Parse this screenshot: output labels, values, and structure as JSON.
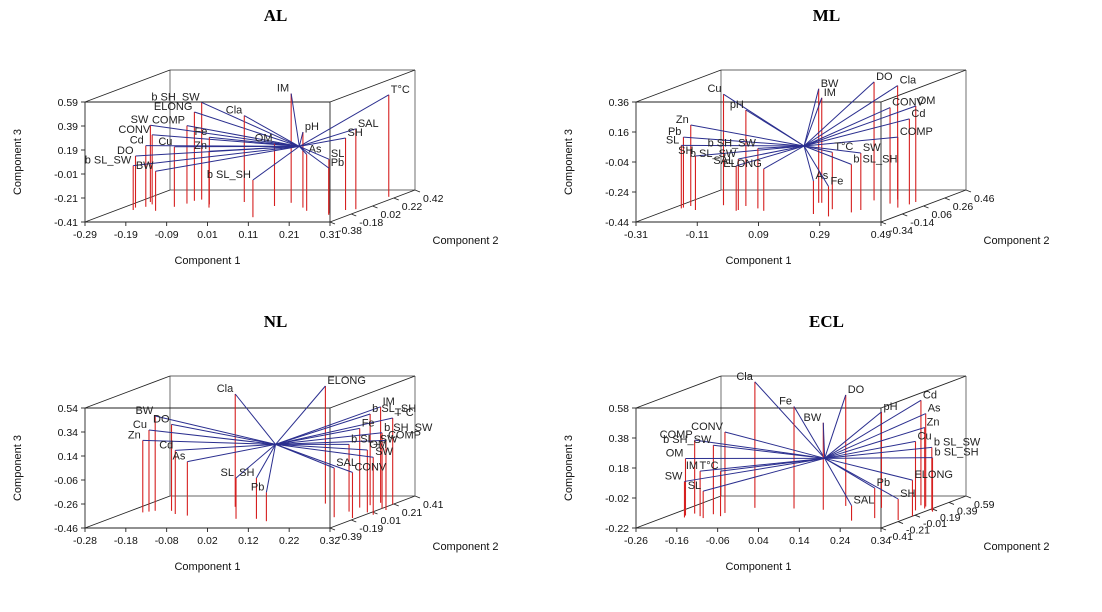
{
  "chart_data": [
    {
      "type": "scatter",
      "title": "AL",
      "xlabel": "Component 1",
      "ylabel": "Component 2",
      "zlabel": "Component 3",
      "xticks": [
        "-0.29",
        "-0.19",
        "-0.09",
        "0.01",
        "0.11",
        "0.21",
        "0.31"
      ],
      "yticks": [
        "-0.38",
        "-0.18",
        "0.02",
        "0.22",
        "0.42"
      ],
      "zticks": [
        "-0.41",
        "-0.21",
        "-0.01",
        "0.19",
        "0.39",
        "0.59"
      ],
      "center": [
        0.11,
        0.1,
        0.06
      ],
      "vectors": [
        {
          "label": "IM",
          "x": 0.09,
          "y": 0.1,
          "z": 0.5
        },
        {
          "label": "T°C",
          "x": 0.29,
          "y": 0.25,
          "z": 0.44
        },
        {
          "label": "b SH_SW",
          "x": -0.15,
          "y": 0.18,
          "z": 0.4
        },
        {
          "label": "ELONG",
          "x": -0.16,
          "y": 0.15,
          "z": 0.33
        },
        {
          "label": "Cla",
          "x": -0.03,
          "y": 0.12,
          "z": 0.31
        },
        {
          "label": "COMP",
          "x": -0.16,
          "y": 0.08,
          "z": 0.24
        },
        {
          "label": "SW",
          "x": -0.26,
          "y": 0.12,
          "z": 0.23
        },
        {
          "label": "CONV",
          "x": -0.24,
          "y": 0.06,
          "z": 0.17
        },
        {
          "label": "Fe",
          "x": -0.1,
          "y": 0.06,
          "z": 0.15
        },
        {
          "label": "pH",
          "x": 0.15,
          "y": -0.02,
          "z": 0.22
        },
        {
          "label": "SAL",
          "x": 0.29,
          "y": -0.06,
          "z": 0.26
        },
        {
          "label": "SH",
          "x": 0.27,
          "y": -0.08,
          "z": 0.19
        },
        {
          "label": "OM",
          "x": 0.07,
          "y": 0.02,
          "z": 0.11
        },
        {
          "label": "Cd",
          "x": -0.24,
          "y": 0.0,
          "z": 0.1
        },
        {
          "label": "Cu",
          "x": -0.17,
          "y": 0.0,
          "z": 0.09
        },
        {
          "label": "Zn",
          "x": -0.08,
          "y": -0.02,
          "z": 0.06
        },
        {
          "label": "As",
          "x": 0.18,
          "y": -0.1,
          "z": 0.06
        },
        {
          "label": "DO",
          "x": -0.26,
          "y": -0.02,
          "z": 0.02
        },
        {
          "label": "SL",
          "x": 0.25,
          "y": -0.16,
          "z": 0.04
        },
        {
          "label": "Pb",
          "x": 0.26,
          "y": -0.2,
          "z": -0.02
        },
        {
          "label": "b SL_SW",
          "x": -0.25,
          "y": -0.08,
          "z": -0.04
        },
        {
          "label": "BW",
          "x": -0.19,
          "y": -0.1,
          "z": -0.08
        },
        {
          "label": "b SL_SH",
          "x": 0.09,
          "y": -0.26,
          "z": -0.1
        }
      ]
    },
    {
      "type": "scatter",
      "title": "ML",
      "xlabel": "Component 1",
      "ylabel": "Component 2",
      "zlabel": "Component 3",
      "xticks": [
        "-0.31",
        "-0.11",
        "0.09",
        "0.29",
        "0.49"
      ],
      "yticks": [
        "-0.34",
        "-0.14",
        "0.06",
        "0.26",
        "0.46"
      ],
      "zticks": [
        "-0.44",
        "-0.24",
        "-0.04",
        "0.16",
        "0.36"
      ],
      "center": [
        0.1,
        0.06,
        -0.04
      ],
      "vectors": [
        {
          "label": "Cu",
          "x": -0.17,
          "y": 0.08,
          "z": 0.3
        },
        {
          "label": "pH",
          "x": -0.09,
          "y": 0.06,
          "z": 0.2
        },
        {
          "label": "BW",
          "x": 0.12,
          "y": 0.14,
          "z": 0.32
        },
        {
          "label": "IM",
          "x": 0.13,
          "y": 0.14,
          "z": 0.26
        },
        {
          "label": "DO",
          "x": 0.28,
          "y": 0.2,
          "z": 0.35
        },
        {
          "label": "Cla",
          "x": 0.35,
          "y": 0.22,
          "z": 0.32
        },
        {
          "label": "CONV",
          "x": 0.36,
          "y": 0.12,
          "z": 0.2
        },
        {
          "label": "OM",
          "x": 0.43,
          "y": 0.16,
          "z": 0.2
        },
        {
          "label": "Cd",
          "x": 0.43,
          "y": 0.1,
          "z": 0.13
        },
        {
          "label": "COMP",
          "x": 0.42,
          "y": 0.02,
          "z": 0.03
        },
        {
          "label": "Zn",
          "x": -0.27,
          "y": 0.06,
          "z": 0.1
        },
        {
          "label": "Pb",
          "x": -0.28,
          "y": 0.02,
          "z": 0.03
        },
        {
          "label": "SL",
          "x": -0.28,
          "y": 0.0,
          "z": -0.02
        },
        {
          "label": "SH",
          "x": -0.22,
          "y": -0.04,
          "z": -0.08
        },
        {
          "label": "b SH_SW",
          "x": -0.03,
          "y": 0.0,
          "z": -0.04
        },
        {
          "label": "b SL_SW",
          "x": -0.08,
          "y": -0.04,
          "z": -0.1
        },
        {
          "label": "SAL",
          "x": -0.08,
          "y": -0.06,
          "z": -0.14
        },
        {
          "label": "ELONG",
          "x": 0.01,
          "y": -0.06,
          "z": -0.16
        },
        {
          "label": "T°C",
          "x": 0.22,
          "y": -0.02,
          "z": -0.06
        },
        {
          "label": "SW",
          "x": 0.32,
          "y": -0.04,
          "z": -0.06
        },
        {
          "label": "b SL_SH",
          "x": 0.31,
          "y": -0.1,
          "z": -0.12
        },
        {
          "label": "As",
          "x": 0.2,
          "y": -0.14,
          "z": -0.22
        },
        {
          "label": "Fe",
          "x": 0.27,
          "y": -0.2,
          "z": -0.24
        }
      ]
    },
    {
      "type": "scatter",
      "title": "NL",
      "xlabel": "Component 1",
      "ylabel": "Component 2",
      "zlabel": "Component 3",
      "xticks": [
        "-0.28",
        "-0.18",
        "-0.08",
        "0.02",
        "0.12",
        "0.22",
        "0.32"
      ],
      "yticks": [
        "-0.39",
        "-0.19",
        "0.01",
        "0.21",
        "0.41"
      ],
      "zticks": [
        "-0.46",
        "-0.26",
        "-0.06",
        "0.14",
        "0.34",
        "0.54"
      ],
      "center": [
        0.08,
        0.02,
        0.1
      ],
      "vectors": [
        {
          "label": "Cla",
          "x": -0.05,
          "y": 0.14,
          "z": 0.48
        },
        {
          "label": "ELONG",
          "x": 0.15,
          "y": 0.22,
          "z": 0.52
        },
        {
          "label": "IM",
          "x": 0.28,
          "y": 0.24,
          "z": 0.34
        },
        {
          "label": "b SL_SH",
          "x": 0.27,
          "y": 0.18,
          "z": 0.3
        },
        {
          "label": "T°C",
          "x": 0.32,
          "y": 0.2,
          "z": 0.26
        },
        {
          "label": "BW",
          "x": -0.22,
          "y": 0.04,
          "z": 0.33
        },
        {
          "label": "DO",
          "x": -0.18,
          "y": 0.04,
          "z": 0.26
        },
        {
          "label": "Cu",
          "x": -0.23,
          "y": 0.02,
          "z": 0.22
        },
        {
          "label": "Fe",
          "x": 0.26,
          "y": 0.12,
          "z": 0.2
        },
        {
          "label": "b SH_SW",
          "x": 0.32,
          "y": 0.1,
          "z": 0.17
        },
        {
          "label": "COMP",
          "x": 0.34,
          "y": 0.06,
          "z": 0.12
        },
        {
          "label": "Zn",
          "x": -0.24,
          "y": 0.0,
          "z": 0.14
        },
        {
          "label": "b SL_SW",
          "x": 0.26,
          "y": 0.02,
          "z": 0.1
        },
        {
          "label": "OM",
          "x": 0.31,
          "y": 0.0,
          "z": 0.06
        },
        {
          "label": "Cd",
          "x": -0.15,
          "y": -0.04,
          "z": 0.07
        },
        {
          "label": "SW",
          "x": 0.34,
          "y": -0.06,
          "z": 0.02
        },
        {
          "label": "As",
          "x": -0.11,
          "y": -0.08,
          "z": -0.01
        },
        {
          "label": "SAL",
          "x": 0.26,
          "y": -0.12,
          "z": -0.05
        },
        {
          "label": "CONV",
          "x": 0.31,
          "y": -0.14,
          "z": -0.08
        },
        {
          "label": "SL",
          "x": 0.03,
          "y": -0.16,
          "z": -0.12
        },
        {
          "label": "SH",
          "x": 0.08,
          "y": -0.16,
          "z": -0.12
        },
        {
          "label": "Pb",
          "x": 0.12,
          "y": -0.22,
          "z": -0.22
        }
      ]
    },
    {
      "type": "scatter",
      "title": "ECL",
      "xlabel": "Component 1",
      "ylabel": "Component 2",
      "zlabel": "Component 3",
      "xticks": [
        "-0.26",
        "-0.16",
        "-0.06",
        "0.04",
        "0.14",
        "0.24",
        "0.34"
      ],
      "yticks": [
        "-0.41",
        "-0.21",
        "-0.01",
        "0.19",
        "0.39",
        "0.59"
      ],
      "zticks": [
        "-0.22",
        "-0.02",
        "0.18",
        "0.38",
        "0.58"
      ],
      "center": [
        0.1,
        0.08,
        0.14
      ],
      "vectors": [
        {
          "label": "Cla",
          "x": -0.1,
          "y": 0.22,
          "z": 0.62
        },
        {
          "label": "Fe",
          "x": 0.0,
          "y": 0.2,
          "z": 0.46
        },
        {
          "label": "DO",
          "x": 0.11,
          "y": 0.28,
          "z": 0.52
        },
        {
          "label": "BW",
          "x": 0.08,
          "y": 0.16,
          "z": 0.36
        },
        {
          "label": "pH",
          "x": 0.21,
          "y": 0.22,
          "z": 0.42
        },
        {
          "label": "Cd",
          "x": 0.29,
          "y": 0.3,
          "z": 0.48
        },
        {
          "label": "As",
          "x": 0.31,
          "y": 0.26,
          "z": 0.4
        },
        {
          "label": "Zn",
          "x": 0.32,
          "y": 0.2,
          "z": 0.32
        },
        {
          "label": "Cu",
          "x": 0.31,
          "y": 0.14,
          "z": 0.24
        },
        {
          "label": "b SL_SW",
          "x": 0.35,
          "y": 0.14,
          "z": 0.2
        },
        {
          "label": "b SL_SH",
          "x": 0.36,
          "y": 0.1,
          "z": 0.14
        },
        {
          "label": "CONV",
          "x": -0.14,
          "y": 0.06,
          "z": 0.32
        },
        {
          "label": "COMP",
          "x": -0.21,
          "y": 0.04,
          "z": 0.27
        },
        {
          "label": "b SH_SW",
          "x": -0.16,
          "y": 0.02,
          "z": 0.24
        },
        {
          "label": "OM",
          "x": -0.22,
          "y": -0.02,
          "z": 0.16
        },
        {
          "label": "T°C",
          "x": -0.13,
          "y": -0.04,
          "z": 0.08
        },
        {
          "label": "IM",
          "x": -0.18,
          "y": -0.04,
          "z": 0.08
        },
        {
          "label": "SW",
          "x": -0.21,
          "y": -0.08,
          "z": 0.02
        },
        {
          "label": "SL",
          "x": -0.16,
          "y": -0.1,
          "z": -0.04
        },
        {
          "label": "ELONG",
          "x": 0.34,
          "y": -0.04,
          "z": 0.02
        },
        {
          "label": "Pb",
          "x": 0.26,
          "y": -0.1,
          "z": -0.02
        },
        {
          "label": "SH",
          "x": 0.33,
          "y": -0.16,
          "z": -0.08
        },
        {
          "label": "SAL",
          "x": 0.22,
          "y": -0.18,
          "z": -0.12
        }
      ]
    }
  ]
}
